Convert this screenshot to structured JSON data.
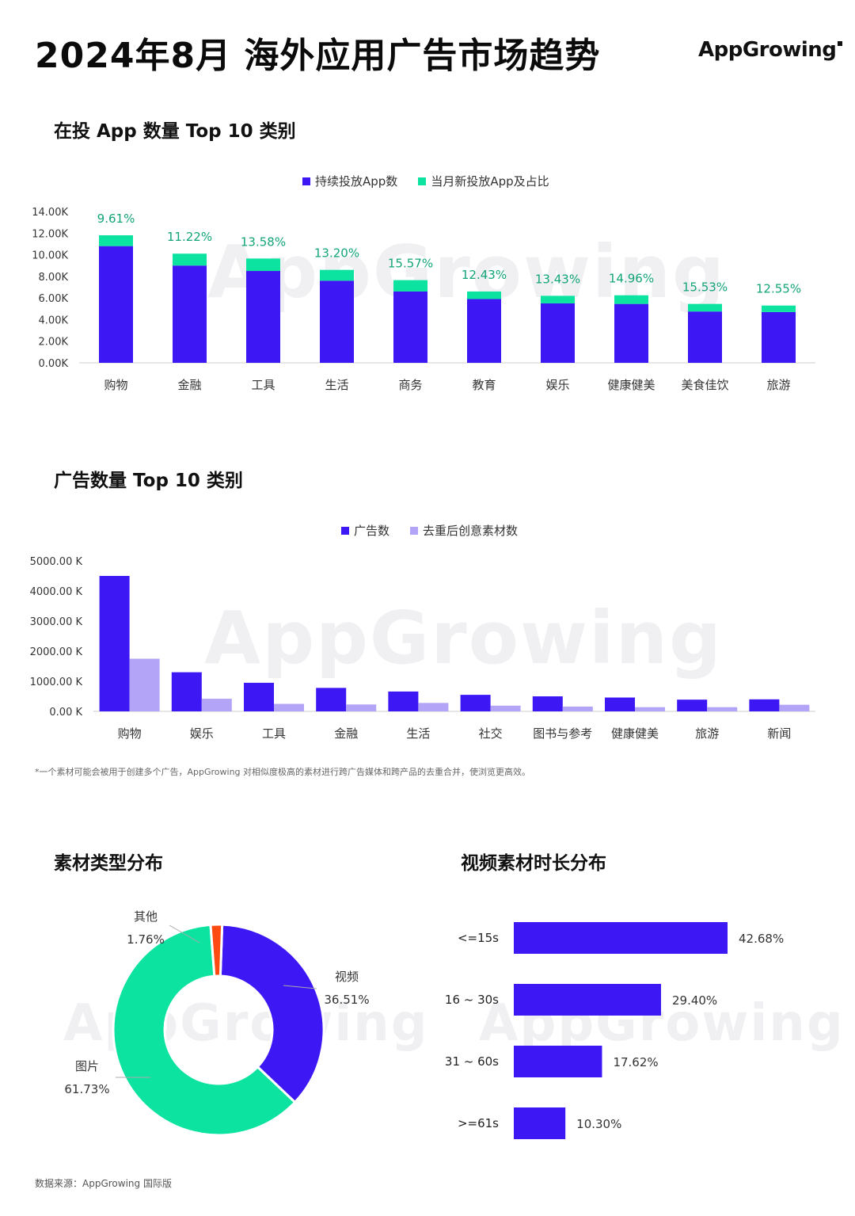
{
  "header": {
    "title": "2024年8月 海外应用广告市场趋势",
    "logo_text": "AppGrowing"
  },
  "sections": {
    "s1_title": "在投 App 数量 Top 10 类别",
    "s2_title": "广告数量 Top 10 类别",
    "s3_title": "素材类型分布",
    "s4_title": "视频素材时长分布"
  },
  "watermark": "AppGrowing",
  "footnote": "*一个素材可能会被用于创建多个广告，AppGrowing 对相似度极高的素材进行跨广告媒体和跨产品的去重合并，使浏览更高效。",
  "source": "数据来源：AppGrowing 国际版",
  "colors": {
    "primary": "#3E18F4",
    "green": "#0CE3A0",
    "lavender": "#B3A4F7",
    "orange": "#FF4A12",
    "pct_text": "#12A478"
  },
  "chart_data": [
    {
      "type": "bar",
      "stacked": true,
      "legend": [
        "持续投放App数",
        "当月新投放App及占比"
      ],
      "legend_position": "top-center",
      "categories": [
        "购物",
        "金融",
        "工具",
        "生活",
        "商务",
        "教育",
        "娱乐",
        "健康健美",
        "美食佳饮",
        "旅游"
      ],
      "series": [
        {
          "name": "持续投放App数",
          "values": [
            10800,
            9000,
            8500,
            7600,
            6600,
            5900,
            5500,
            5450,
            4750,
            4700
          ]
        },
        {
          "name": "当月新投放App及占比",
          "values": [
            1000,
            1100,
            1150,
            1000,
            1050,
            700,
            700,
            800,
            700,
            600
          ]
        }
      ],
      "annotations": [
        "9.61%",
        "11.22%",
        "13.58%",
        "13.20%",
        "15.57%",
        "12.43%",
        "13.43%",
        "14.96%",
        "15.53%",
        "12.55%"
      ],
      "yticks": [
        "0.00K",
        "2.00K",
        "4.00K",
        "6.00K",
        "8.00K",
        "10.00K",
        "12.00K",
        "14.00K"
      ],
      "ylim": [
        0,
        14000
      ]
    },
    {
      "type": "bar",
      "legend": [
        "广告数",
        "去重后创意素材数"
      ],
      "legend_position": "top-center",
      "categories": [
        "购物",
        "娱乐",
        "工具",
        "金融",
        "生活",
        "社交",
        "图书与参考",
        "健康健美",
        "旅游",
        "新闻"
      ],
      "series": [
        {
          "name": "广告数",
          "values": [
            4500,
            1300,
            950,
            780,
            660,
            550,
            500,
            460,
            390,
            400
          ]
        },
        {
          "name": "去重后创意素材数",
          "values": [
            1750,
            420,
            250,
            230,
            280,
            190,
            160,
            140,
            140,
            220
          ]
        }
      ],
      "yticks": [
        "0.00 K",
        "1000.00 K",
        "2000.00 K",
        "3000.00 K",
        "4000.00 K",
        "5000.00 K"
      ],
      "ylim": [
        0,
        5000
      ]
    },
    {
      "type": "pie",
      "donut": true,
      "slices": [
        {
          "label": "视频",
          "value": 36.51,
          "pct_label": "36.51%"
        },
        {
          "label": "图片",
          "value": 61.73,
          "pct_label": "61.73%"
        },
        {
          "label": "其他",
          "value": 1.76,
          "pct_label": "1.76%"
        }
      ]
    },
    {
      "type": "bar",
      "orientation": "horizontal",
      "categories": [
        "<=15s",
        "16 ~ 30s",
        "31 ~ 60s",
        ">=61s"
      ],
      "values": [
        42.68,
        29.4,
        17.62,
        10.3
      ],
      "value_labels": [
        "42.68%",
        "29.40%",
        "17.62%",
        "10.30%"
      ],
      "xlim": [
        0,
        42.68
      ]
    }
  ]
}
